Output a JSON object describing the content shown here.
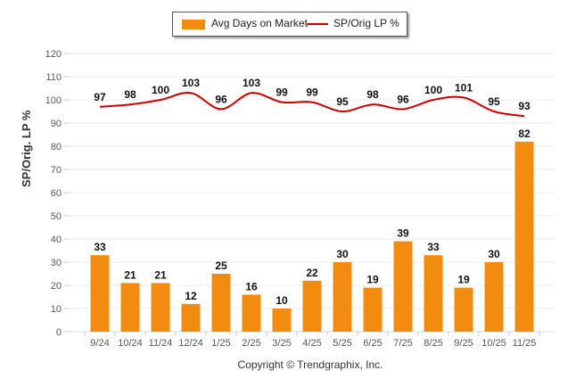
{
  "chart_data": {
    "type": "bar+line",
    "categories": [
      "9/24",
      "10/24",
      "11/24",
      "12/24",
      "1/25",
      "2/25",
      "3/25",
      "4/25",
      "5/25",
      "6/25",
      "7/25",
      "8/25",
      "9/25",
      "10/25",
      "11/25"
    ],
    "series": [
      {
        "name": "Avg Days on Market",
        "type": "bar",
        "color": "#F28C10",
        "values": [
          33,
          21,
          21,
          12,
          25,
          16,
          10,
          22,
          30,
          19,
          39,
          33,
          19,
          30,
          82
        ]
      },
      {
        "name": "SP/Orig LP %",
        "type": "line",
        "color": "#CC0000",
        "values": [
          97,
          98,
          100,
          103,
          96,
          103,
          99,
          99,
          95,
          98,
          96,
          100,
          101,
          95,
          93
        ]
      }
    ],
    "title": "",
    "xlabel": "",
    "ylabel": "SP/Orig. LP %",
    "ylim": [
      0,
      120
    ],
    "yticks": [
      0,
      10,
      20,
      30,
      40,
      50,
      60,
      70,
      80,
      90,
      100,
      110,
      120
    ],
    "grid": true,
    "legend_position": "top-center"
  },
  "legend": {
    "bar_label": "Avg Days on Market",
    "line_label": "SP/Orig LP %"
  },
  "footer": {
    "copyright": "Copyright © Trendgraphix, Inc."
  }
}
